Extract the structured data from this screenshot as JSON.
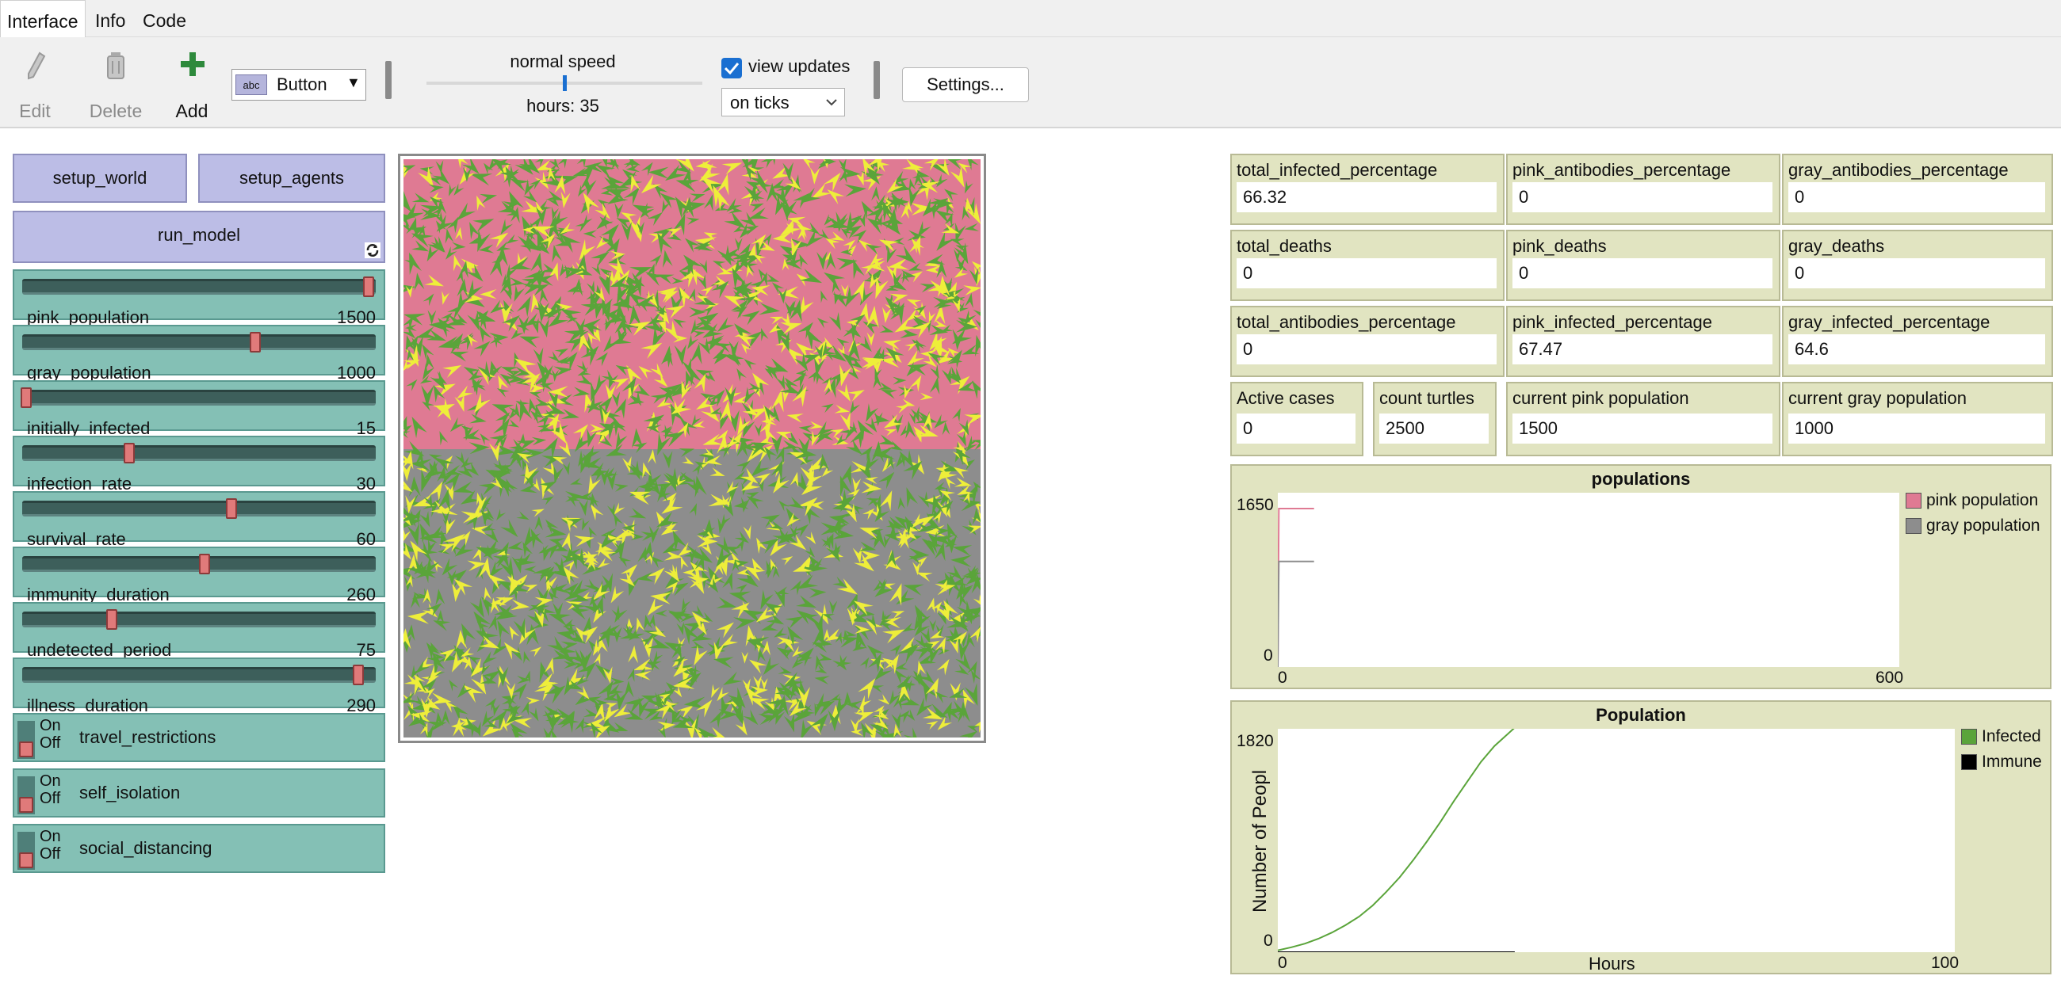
{
  "tabs": [
    "Interface",
    "Info",
    "Code"
  ],
  "toolbar": {
    "edit_label": "Edit",
    "delete_label": "Delete",
    "add_label": "Add",
    "widget_type": "Button",
    "speed_label": "normal speed",
    "speed_fraction": 0.5,
    "hours_label": "hours: 35",
    "view_updates_label": "view updates",
    "view_updates_checked": true,
    "update_mode": "on ticks",
    "settings_label": "Settings..."
  },
  "buttons": {
    "setup_world": "setup_world",
    "setup_agents": "setup_agents",
    "run_model": "run_model"
  },
  "sliders": [
    {
      "name": "pink_population",
      "value": "1500",
      "fraction": 1.0
    },
    {
      "name": "gray_population",
      "value": "1000",
      "fraction": 0.67
    },
    {
      "name": "initially_infected",
      "value": "15",
      "fraction": 0.0
    },
    {
      "name": "infection_rate",
      "value": "30",
      "fraction": 0.3
    },
    {
      "name": "survival_rate",
      "value": "60",
      "fraction": 0.6
    },
    {
      "name": "immunity_duration",
      "value": "260",
      "fraction": 0.52
    },
    {
      "name": "undetected_period",
      "value": "75",
      "fraction": 0.25
    },
    {
      "name": "illness_duration",
      "value": "290",
      "fraction": 0.97
    }
  ],
  "switches": [
    {
      "name": "travel_restrictions",
      "on": "On",
      "off": "Off"
    },
    {
      "name": "self_isolation",
      "on": "On",
      "off": "Off"
    },
    {
      "name": "social_distancing",
      "on": "On",
      "off": "Off"
    }
  ],
  "monitors": [
    {
      "label": "total_infected_percentage",
      "value": "66.32"
    },
    {
      "label": "pink_antibodies_percentage",
      "value": "0"
    },
    {
      "label": "gray_antibodies_percentage",
      "value": "0"
    },
    {
      "label": "total_deaths",
      "value": "0"
    },
    {
      "label": "pink_deaths",
      "value": "0"
    },
    {
      "label": "gray_deaths",
      "value": "0"
    },
    {
      "label": "total_antibodies_percentage",
      "value": "0"
    },
    {
      "label": "pink_infected_percentage",
      "value": "67.47"
    },
    {
      "label": "gray_infected_percentage",
      "value": "64.6"
    },
    {
      "label": "Active cases",
      "value": "0"
    },
    {
      "label": "count turtles",
      "value": "2500"
    },
    {
      "label": "current pink population",
      "value": "1500"
    },
    {
      "label": "current gray population",
      "value": "1000"
    }
  ],
  "colors": {
    "pink": "#df7a93",
    "gray": "#8d8d8d",
    "green": "#5aa43a",
    "yellow": "#eeee3a",
    "button": "#bcbde6",
    "slider": "#84c0b5",
    "monitor": "#e1e4c1"
  },
  "chart_data": [
    {
      "type": "line",
      "title": "populations",
      "xlim": [
        0,
        600
      ],
      "ylim": [
        0,
        1650
      ],
      "x_tick_labels": [
        "0",
        "600"
      ],
      "y_tick_labels": [
        "0",
        "1650"
      ],
      "series": [
        {
          "name": "pink population",
          "color": "#df7a93",
          "x": [
            0,
            1,
            35
          ],
          "y": [
            0,
            1500,
            1500
          ]
        },
        {
          "name": "gray population",
          "color": "#8d8d8d",
          "x": [
            0,
            1,
            35
          ],
          "y": [
            0,
            1000,
            1000
          ]
        }
      ]
    },
    {
      "type": "line",
      "title": "Population",
      "xlabel": "Hours",
      "ylabel": "Number of Peopl",
      "xlim": [
        0,
        100
      ],
      "ylim": [
        0,
        1820
      ],
      "x_tick_labels": [
        "0",
        "100"
      ],
      "y_tick_labels": [
        "0",
        "1820"
      ],
      "series": [
        {
          "name": "Infected",
          "color": "#5aa43a",
          "x": [
            0,
            2,
            4,
            6,
            8,
            10,
            12,
            14,
            16,
            18,
            20,
            22,
            24,
            26,
            28,
            30,
            32,
            34,
            35
          ],
          "y": [
            15,
            40,
            70,
            110,
            160,
            220,
            290,
            380,
            490,
            610,
            750,
            900,
            1060,
            1230,
            1390,
            1550,
            1680,
            1780,
            1830
          ]
        },
        {
          "name": "Immune",
          "color": "#000000",
          "x": [
            0,
            35
          ],
          "y": [
            0,
            0
          ]
        }
      ]
    }
  ]
}
